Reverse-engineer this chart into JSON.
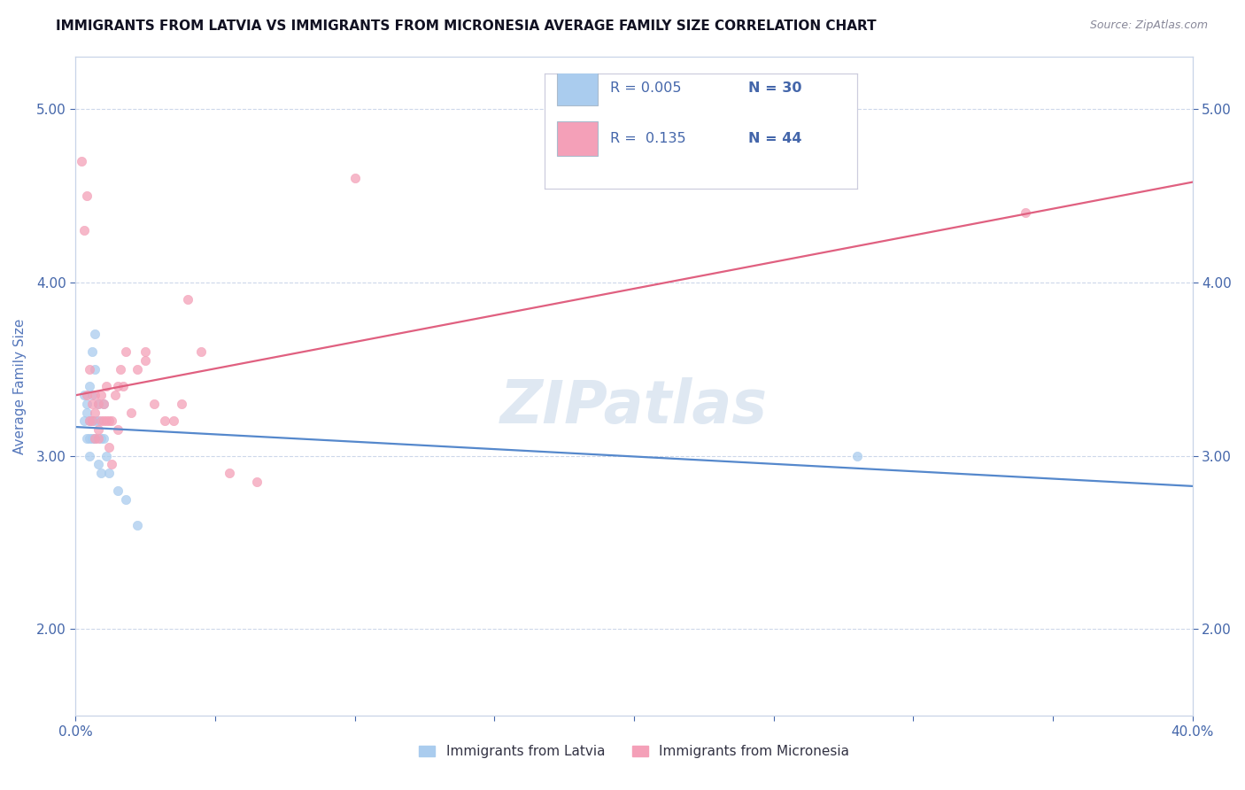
{
  "title": "IMMIGRANTS FROM LATVIA VS IMMIGRANTS FROM MICRONESIA AVERAGE FAMILY SIZE CORRELATION CHART",
  "source": "Source: ZipAtlas.com",
  "ylabel": "Average Family Size",
  "xlim": [
    0.0,
    0.4
  ],
  "ylim": [
    1.5,
    5.3
  ],
  "yticks": [
    2.0,
    3.0,
    4.0,
    5.0
  ],
  "xtick_positions": [
    0.0,
    0.05,
    0.1,
    0.15,
    0.2,
    0.25,
    0.3,
    0.35,
    0.4
  ],
  "series": [
    {
      "label": "Immigrants from Latvia",
      "R": "0.005",
      "R_val": 0.005,
      "N": 30,
      "color": "#aaccee",
      "line_color": "#5588cc",
      "line_style": "-",
      "scatter_x": [
        0.003,
        0.003,
        0.004,
        0.004,
        0.004,
        0.005,
        0.005,
        0.005,
        0.005,
        0.006,
        0.006,
        0.006,
        0.006,
        0.007,
        0.007,
        0.007,
        0.007,
        0.008,
        0.008,
        0.008,
        0.009,
        0.009,
        0.01,
        0.01,
        0.011,
        0.012,
        0.015,
        0.018,
        0.022,
        0.28
      ],
      "scatter_y": [
        3.35,
        3.2,
        3.3,
        3.1,
        3.25,
        3.4,
        3.2,
        3.1,
        3.0,
        3.35,
        3.2,
        3.1,
        3.6,
        3.5,
        3.7,
        3.2,
        3.1,
        3.3,
        3.2,
        2.95,
        3.1,
        2.9,
        3.3,
        3.1,
        3.0,
        2.9,
        2.8,
        2.75,
        2.6,
        3.0
      ]
    },
    {
      "label": "Immigrants from Micronesia",
      "R": "0.135",
      "R_val": 0.135,
      "N": 44,
      "color": "#f4a0b8",
      "line_color": "#e06080",
      "line_style": "-",
      "scatter_x": [
        0.002,
        0.003,
        0.004,
        0.004,
        0.005,
        0.005,
        0.006,
        0.006,
        0.007,
        0.007,
        0.007,
        0.008,
        0.008,
        0.008,
        0.009,
        0.009,
        0.01,
        0.01,
        0.011,
        0.011,
        0.012,
        0.012,
        0.013,
        0.013,
        0.014,
        0.015,
        0.015,
        0.016,
        0.017,
        0.018,
        0.02,
        0.022,
        0.025,
        0.025,
        0.028,
        0.032,
        0.035,
        0.038,
        0.04,
        0.045,
        0.055,
        0.065,
        0.1,
        0.34
      ],
      "scatter_y": [
        4.7,
        4.3,
        4.5,
        3.35,
        3.5,
        3.2,
        3.3,
        3.2,
        3.35,
        3.25,
        3.1,
        3.3,
        3.1,
        3.15,
        3.35,
        3.2,
        3.3,
        3.2,
        3.4,
        3.2,
        3.2,
        3.05,
        3.2,
        2.95,
        3.35,
        3.15,
        3.4,
        3.5,
        3.4,
        3.6,
        3.25,
        3.5,
        3.6,
        3.55,
        3.3,
        3.2,
        3.2,
        3.3,
        3.9,
        3.6,
        2.9,
        2.85,
        4.6,
        4.4
      ]
    }
  ],
  "watermark": "ZIPatlas",
  "background_color": "#ffffff",
  "grid_color": "#c8d4e8",
  "title_color": "#111122",
  "axis_color": "#5577bb",
  "tick_label_color": "#4466aa"
}
